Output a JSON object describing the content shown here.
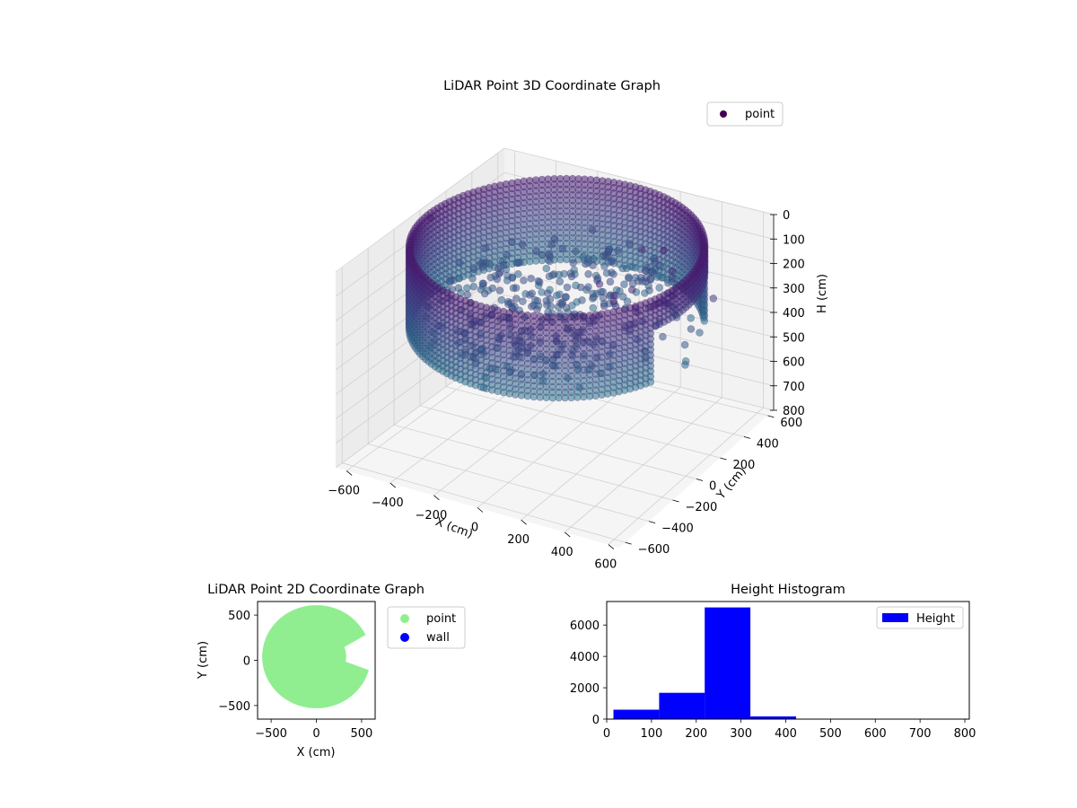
{
  "chart_data": [
    {
      "type": "scatter",
      "projection": "3d",
      "title": "LiDAR Point 3D Coordinate Graph",
      "xlabel": "X (cm)",
      "ylabel": "Y (cm)",
      "zlabel": "H (cm)",
      "xlim": [
        -650,
        650
      ],
      "ylim": [
        -650,
        650
      ],
      "zlim": [
        800,
        0
      ],
      "xticks": [
        "−600",
        "−400",
        "−200",
        "0",
        "200",
        "400",
        "600"
      ],
      "yticks": [
        "−600",
        "−400",
        "−200",
        "0",
        "200",
        "400",
        "600"
      ],
      "zticks": [
        "0",
        "100",
        "200",
        "300",
        "400",
        "500",
        "600",
        "700",
        "800"
      ],
      "z_axis_inverted": true,
      "grid": true,
      "colormap": "viridis",
      "legend": {
        "placement": "top-right",
        "entries": [
          "point"
        ]
      },
      "series": [
        {
          "name": "point",
          "shape": "cylindrical wall of points, radius about 600 cm, heights 0–330 cm, open toward +X with scattered points inside",
          "wall_radius": 600,
          "height_range": [
            0,
            330
          ],
          "sample_points": [
            {
              "x": 600,
              "y": 0,
              "h": 330
            },
            {
              "x": 0,
              "y": 600,
              "h": 330
            },
            {
              "x": -600,
              "y": 0,
              "h": 330
            },
            {
              "x": 0,
              "y": -600,
              "h": 330
            },
            {
              "x": 600,
              "y": 0,
              "h": 20
            },
            {
              "x": -600,
              "y": 0,
              "h": 20
            },
            {
              "x": 250,
              "y": 250,
              "h": 60
            },
            {
              "x": 150,
              "y": -120,
              "h": 300
            }
          ]
        }
      ]
    },
    {
      "type": "scatter",
      "title": "LiDAR Point 2D Coordinate Graph",
      "xlabel": "X (cm)",
      "ylabel": "Y (cm)",
      "xlim": [
        -650,
        650
      ],
      "ylim": [
        -650,
        650
      ],
      "xticks": [
        "−500",
        "0",
        "500"
      ],
      "yticks": [
        "−500",
        "0",
        "500"
      ],
      "legend": {
        "placement": "outside-right",
        "entries": [
          "point",
          "wall"
        ]
      },
      "series": [
        {
          "name": "point",
          "color": "#90ee90",
          "shape": "filled disc of radius about 600 cm with notches toward +X"
        },
        {
          "name": "wall",
          "color": "#0000ff",
          "points": []
        }
      ]
    },
    {
      "type": "bar",
      "title": "Height Histogram",
      "xlabel": "",
      "ylabel": "",
      "xlim": [
        0,
        810
      ],
      "ylim": [
        0,
        7500
      ],
      "xticks": [
        "0",
        "100",
        "200",
        "300",
        "400",
        "500",
        "600",
        "700",
        "800"
      ],
      "yticks": [
        "0",
        "2000",
        "4000",
        "6000"
      ],
      "color": "#0000ff",
      "legend": {
        "placement": "top-right",
        "entries": [
          "Height"
        ]
      },
      "series": [
        {
          "name": "Height",
          "bins": [
            {
              "x0": 15,
              "x1": 117,
              "count": 600
            },
            {
              "x0": 117,
              "x1": 219,
              "count": 1680
            },
            {
              "x0": 219,
              "x1": 321,
              "count": 7120
            },
            {
              "x0": 321,
              "x1": 423,
              "count": 170
            },
            {
              "x0": 423,
              "x1": 525,
              "count": 8
            },
            {
              "x0": 525,
              "x1": 627,
              "count": 4
            },
            {
              "x0": 627,
              "x1": 729,
              "count": 3
            },
            {
              "x0": 729,
              "x1": 790,
              "count": 3
            }
          ]
        }
      ]
    }
  ]
}
